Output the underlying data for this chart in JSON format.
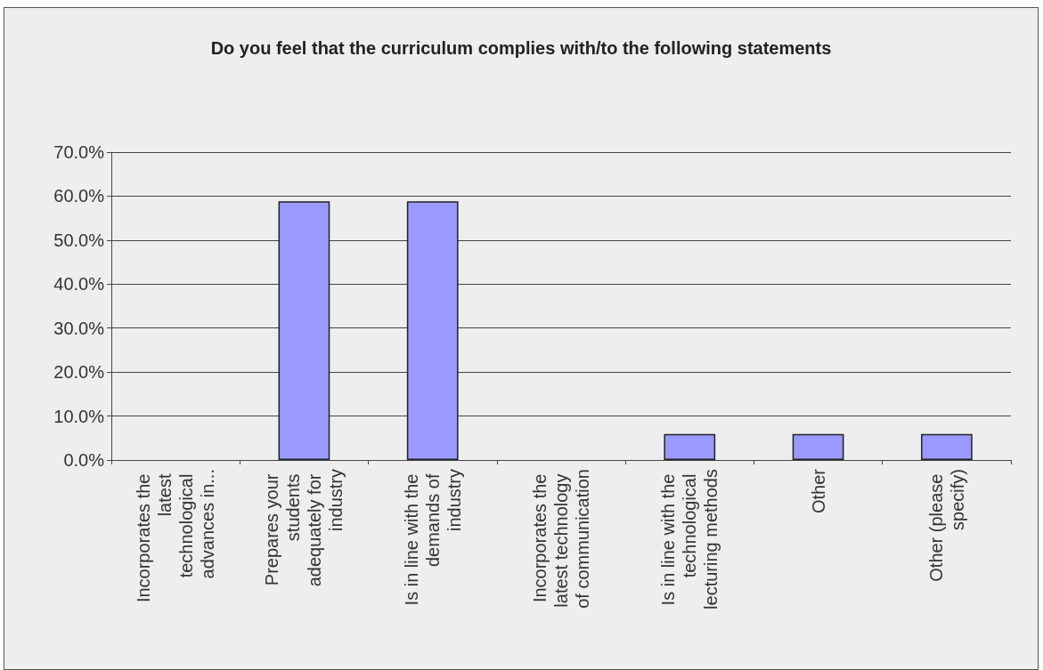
{
  "chart_data": {
    "type": "bar",
    "title": "Do you feel that the curriculum complies with/to the following statements",
    "categories": [
      "Incorporates the latest technological advances in...",
      "Prepares your students adequately for industry",
      "Is in line with the demands of industry",
      "Incorporates the latest technology of communication",
      "Is in line with the technological lecturing methods",
      "Other",
      "Other (please specify)"
    ],
    "values": [
      0,
      58.8,
      58.8,
      0,
      5.9,
      5.9,
      5.9
    ],
    "color": "#9999ff",
    "ylim": [
      0,
      70
    ],
    "yticks": [
      {
        "value": 0,
        "label": "0.0%"
      },
      {
        "value": 10,
        "label": "10.0%"
      },
      {
        "value": 20,
        "label": "20.0%"
      },
      {
        "value": 30,
        "label": "30.0%"
      },
      {
        "value": 40,
        "label": "40.0%"
      },
      {
        "value": 50,
        "label": "50.0%"
      },
      {
        "value": 60,
        "label": "60.0%"
      },
      {
        "value": 70,
        "label": "70.0%"
      }
    ],
    "grid": "y"
  }
}
